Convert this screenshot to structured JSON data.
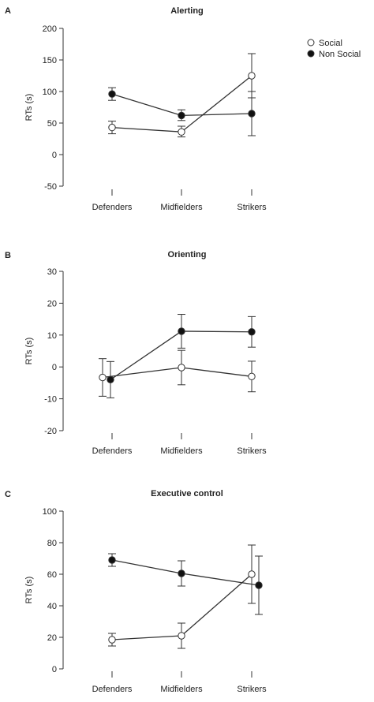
{
  "legend": {
    "items": [
      {
        "label": "Social",
        "marker": "open-circle"
      },
      {
        "label": "Non Social",
        "marker": "filled-circle"
      }
    ]
  },
  "colors": {
    "line": "#333333",
    "axis": "#333333",
    "fill_social": "#ffffff",
    "fill_nonsocial": "#111111"
  },
  "chart_data": [
    {
      "panel": "A",
      "type": "line",
      "title": "Alerting",
      "xlabel": "",
      "ylabel": "RTs (s)",
      "categories": [
        "Defenders",
        "Midfielders",
        "Strikers"
      ],
      "yticks": [
        -50,
        0,
        50,
        100,
        150,
        200
      ],
      "ylim": [
        -50,
        200
      ],
      "grid": false,
      "legend_position": "top-right",
      "series": [
        {
          "name": "Social",
          "marker": "open-circle",
          "values": [
            43,
            36,
            125
          ],
          "err_low": [
            33,
            28,
            90
          ],
          "err_high": [
            53,
            45,
            160
          ]
        },
        {
          "name": "Non Social",
          "marker": "filled-circle",
          "values": [
            96,
            62,
            65
          ],
          "err_low": [
            86,
            54,
            30
          ],
          "err_high": [
            106,
            71,
            100
          ]
        }
      ]
    },
    {
      "panel": "B",
      "type": "line",
      "title": "Orienting",
      "xlabel": "",
      "ylabel": "RTs (s)",
      "categories": [
        "Defenders",
        "Midfielders",
        "Strikers"
      ],
      "yticks": [
        -20,
        -10,
        0,
        10,
        20,
        30
      ],
      "ylim": [
        -20,
        30
      ],
      "grid": false,
      "series": [
        {
          "name": "Social",
          "marker": "open-circle",
          "values": [
            -3.3,
            -0.2,
            -3.0
          ],
          "err_low": [
            -9.2,
            -5.6,
            -7.8
          ],
          "err_high": [
            2.6,
            5.2,
            1.8
          ]
        },
        {
          "name": "Non Social",
          "marker": "filled-circle",
          "values": [
            -4.0,
            11.2,
            11.0
          ],
          "err_low": [
            -9.7,
            5.9,
            6.2
          ],
          "err_high": [
            1.7,
            16.5,
            15.8
          ]
        }
      ]
    },
    {
      "panel": "C",
      "type": "line",
      "title": "Executive control",
      "xlabel": "",
      "ylabel": "RTs (s)",
      "categories": [
        "Defenders",
        "Midfielders",
        "Strikers"
      ],
      "yticks": [
        0,
        20,
        40,
        60,
        80,
        100
      ],
      "ylim": [
        0,
        100
      ],
      "grid": false,
      "series": [
        {
          "name": "Social",
          "marker": "open-circle",
          "values": [
            18.5,
            21,
            60
          ],
          "err_low": [
            14.5,
            13,
            41.5
          ],
          "err_high": [
            22.5,
            29,
            78.5
          ]
        },
        {
          "name": "Non Social",
          "marker": "filled-circle",
          "values": [
            69,
            60.5,
            53
          ],
          "err_low": [
            65,
            52.5,
            34.5
          ],
          "err_high": [
            73,
            68.5,
            71.5
          ]
        }
      ]
    }
  ]
}
